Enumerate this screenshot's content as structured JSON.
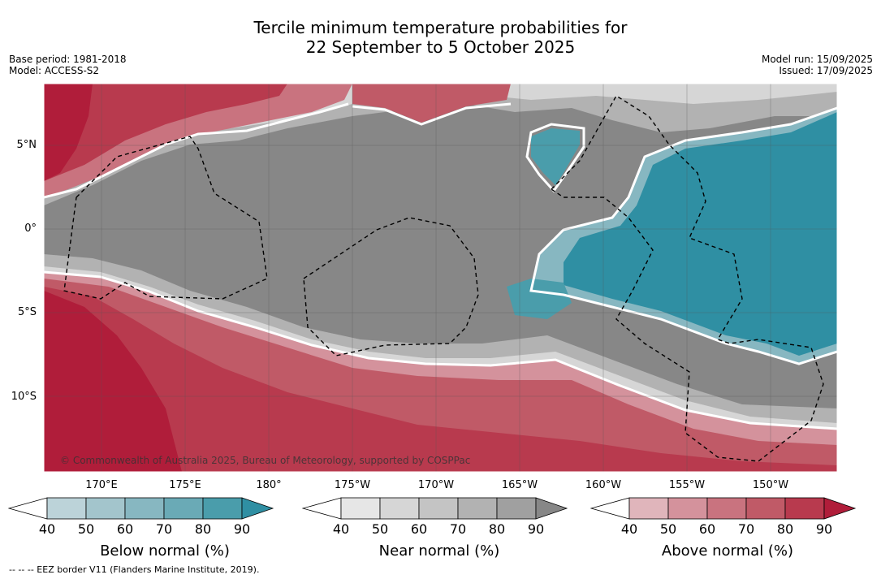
{
  "title_line1": "Tercile minimum temperature probabilities for",
  "title_line2": "22 September to 5 October 2025",
  "base_period": "Base period: 1981-2018",
  "model": "Model: ACCESS-S2",
  "model_run": "Model run: 15/09/2025",
  "issued": "Issued: 17/09/2025",
  "lat_labels": [
    "5°N",
    "0°",
    "5°S",
    "10°S"
  ],
  "lon_labels": [
    "170°E",
    "175°E",
    "180°",
    "175°W",
    "170°W",
    "165°W",
    "160°W",
    "155°W",
    "150°W"
  ],
  "copyright": "© Commonwealth of Australia 2025, Bureau of Meteorology, supported by COSPPac",
  "colorbars": [
    {
      "label": "Below normal (%)",
      "ticks": [
        "40",
        "50",
        "60",
        "70",
        "80",
        "90"
      ],
      "colors": [
        "#ffffff",
        "#bcd3d9",
        "#a3c5cc",
        "#87b7c1",
        "#6aaab6",
        "#4a9dab",
        "#2f8fa3"
      ]
    },
    {
      "label": "Near normal (%)",
      "ticks": [
        "40",
        "50",
        "60",
        "70",
        "80",
        "90"
      ],
      "colors": [
        "#ffffff",
        "#e6e6e6",
        "#d6d6d6",
        "#c4c4c4",
        "#b2b2b2",
        "#a0a0a0",
        "#878787"
      ]
    },
    {
      "label": "Above normal (%)",
      "ticks": [
        "40",
        "50",
        "60",
        "70",
        "80",
        "90"
      ],
      "colors": [
        "#ffffff",
        "#e0b5bb",
        "#d4929c",
        "#c9737f",
        "#c05a67",
        "#b83a4e",
        "#b01d3a"
      ]
    }
  ],
  "eez_note": "-- -- -- EEZ border V11 (Flanders Marine Institute, 2019)."
}
